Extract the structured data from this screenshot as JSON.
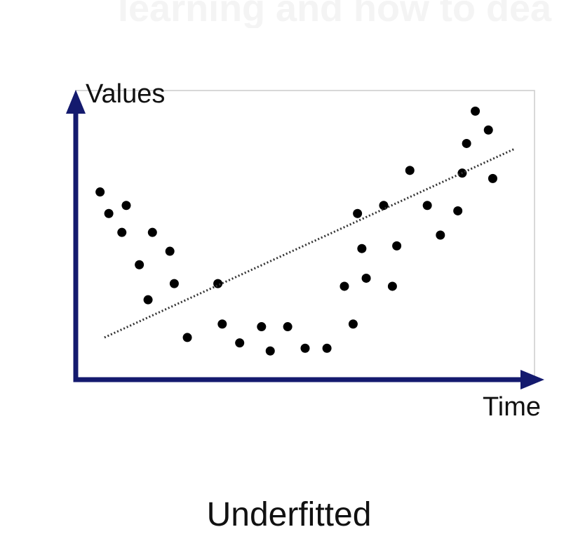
{
  "header_fragment": "learning and how to dea",
  "caption": "Underfitted",
  "colors": {
    "axis": "#141a6e",
    "points": "#000000",
    "trend_line": "#333333",
    "frame": "#cccccc"
  },
  "chart_data": {
    "type": "scatter",
    "title": "",
    "xlabel": "Time",
    "ylabel": "Values",
    "xlim": [
      0,
      100
    ],
    "ylim": [
      0,
      100
    ],
    "grid": false,
    "legend": "none",
    "series": [
      {
        "points": [
          {
            "x": 3,
            "y": 66
          },
          {
            "x": 5,
            "y": 58
          },
          {
            "x": 8,
            "y": 51
          },
          {
            "x": 9,
            "y": 61
          },
          {
            "x": 12,
            "y": 39
          },
          {
            "x": 14,
            "y": 26
          },
          {
            "x": 15,
            "y": 51
          },
          {
            "x": 19,
            "y": 44
          },
          {
            "x": 20,
            "y": 32
          },
          {
            "x": 23,
            "y": 12
          },
          {
            "x": 30,
            "y": 32
          },
          {
            "x": 31,
            "y": 17
          },
          {
            "x": 35,
            "y": 10
          },
          {
            "x": 40,
            "y": 16
          },
          {
            "x": 42,
            "y": 7
          },
          {
            "x": 46,
            "y": 16
          },
          {
            "x": 50,
            "y": 8
          },
          {
            "x": 55,
            "y": 8
          },
          {
            "x": 59,
            "y": 31
          },
          {
            "x": 61,
            "y": 17
          },
          {
            "x": 62,
            "y": 58
          },
          {
            "x": 63,
            "y": 45
          },
          {
            "x": 64,
            "y": 34
          },
          {
            "x": 68,
            "y": 61
          },
          {
            "x": 70,
            "y": 31
          },
          {
            "x": 71,
            "y": 46
          },
          {
            "x": 74,
            "y": 74
          },
          {
            "x": 78,
            "y": 61
          },
          {
            "x": 81,
            "y": 50
          },
          {
            "x": 85,
            "y": 59
          },
          {
            "x": 86,
            "y": 73
          },
          {
            "x": 87,
            "y": 84
          },
          {
            "x": 89,
            "y": 96
          },
          {
            "x": 92,
            "y": 89
          },
          {
            "x": 93,
            "y": 71
          }
        ]
      }
    ],
    "trend_line": {
      "style": "dotted",
      "x": [
        4,
        98
      ],
      "y": [
        12,
        82
      ]
    }
  }
}
